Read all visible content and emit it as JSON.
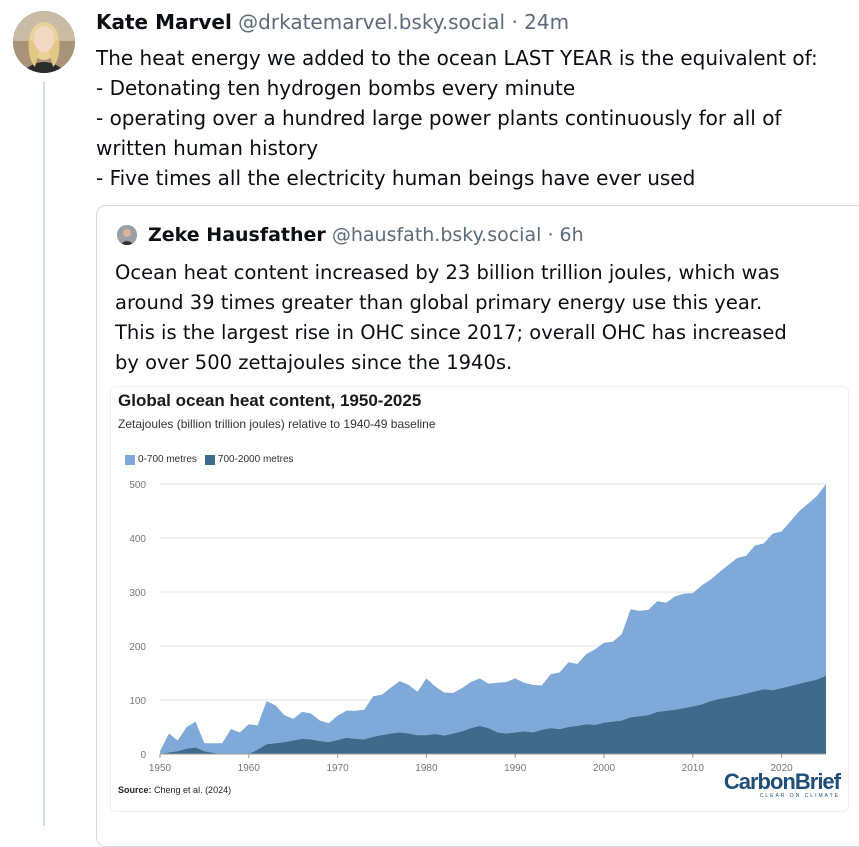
{
  "post": {
    "author_name": "Kate Marvel",
    "author_handle": "@drkatemarvel.bsky.social",
    "separator": "·",
    "time": "24m",
    "lines": [
      "The heat energy we added to the ocean LAST YEAR is the equivalent of:",
      "- Detonating ten hydrogen bombs every minute",
      "- operating over a hundred large power plants continuously for all of",
      "written human history",
      "- Five times all the electricity human beings have ever used"
    ]
  },
  "quote": {
    "author_name": "Zeke Hausfather",
    "author_handle": "@hausfath.bsky.social",
    "separator": "·",
    "time": "6h",
    "lines": [
      "Ocean heat content increased by 23 billion trillion joules, which was",
      "around 39 times greater than global primary energy use this year.",
      "This is the largest rise in OHC since 2017; overall OHC has increased",
      "by over 500 zettajoules since the 1940s."
    ]
  },
  "chart_data": {
    "type": "area",
    "title": "Global ocean heat content, 1950-2025",
    "subtitle": "Zetajoules (billion trillion joules) relative to 1940-49 baseline",
    "stacked": true,
    "x": [
      1950,
      1951,
      1952,
      1953,
      1954,
      1955,
      1956,
      1957,
      1958,
      1959,
      1960,
      1961,
      1962,
      1963,
      1964,
      1965,
      1966,
      1967,
      1968,
      1969,
      1970,
      1971,
      1972,
      1973,
      1974,
      1975,
      1976,
      1977,
      1978,
      1979,
      1980,
      1981,
      1982,
      1983,
      1984,
      1985,
      1986,
      1987,
      1988,
      1989,
      1990,
      1991,
      1992,
      1993,
      1994,
      1995,
      1996,
      1997,
      1998,
      1999,
      2000,
      2001,
      2002,
      2003,
      2004,
      2005,
      2006,
      2007,
      2008,
      2009,
      2010,
      2011,
      2012,
      2013,
      2014,
      2015,
      2016,
      2017,
      2018,
      2019,
      2020,
      2021,
      2022,
      2023,
      2024,
      2025
    ],
    "series": [
      {
        "name": "700-2000 metres",
        "values": [
          0,
          3,
          5,
          10,
          12,
          5,
          2,
          0,
          1,
          0,
          0,
          8,
          18,
          20,
          22,
          25,
          28,
          27,
          24,
          22,
          26,
          30,
          28,
          27,
          32,
          35,
          38,
          40,
          38,
          35,
          35,
          37,
          34,
          38,
          42,
          48,
          52,
          48,
          40,
          38,
          40,
          42,
          40,
          45,
          48,
          46,
          50,
          52,
          55,
          54,
          58,
          60,
          62,
          68,
          70,
          72,
          78,
          80,
          82,
          85,
          88,
          92,
          98,
          102,
          105,
          108,
          112,
          116,
          120,
          118,
          122,
          126,
          130,
          134,
          138,
          145
        ]
      },
      {
        "name": "0-700 metres",
        "values": [
          5,
          35,
          20,
          40,
          48,
          15,
          18,
          20,
          45,
          40,
          55,
          45,
          80,
          70,
          50,
          40,
          50,
          48,
          38,
          35,
          45,
          50,
          52,
          55,
          75,
          75,
          85,
          95,
          90,
          80,
          105,
          88,
          80,
          75,
          80,
          85,
          88,
          82,
          92,
          95,
          100,
          90,
          88,
          82,
          100,
          105,
          120,
          115,
          130,
          140,
          148,
          148,
          160,
          200,
          195,
          195,
          205,
          200,
          210,
          212,
          210,
          220,
          225,
          235,
          245,
          255,
          255,
          270,
          270,
          290,
          290,
          305,
          320,
          330,
          340,
          355
        ]
      }
    ],
    "xlim": [
      1950,
      2025
    ],
    "ylim": [
      0,
      500
    ],
    "xticks": [
      1950,
      1960,
      1970,
      1980,
      1990,
      2000,
      2010,
      2020
    ],
    "yticks": [
      0,
      100,
      200,
      300,
      400,
      500
    ],
    "grid": true,
    "legend_position": "top-left",
    "colors": {
      "0-700 metres": "#7fa9d8",
      "700-2000 metres": "#3f6a8a"
    },
    "source_label": "Source:",
    "source_text": "Cheng et al. (2024)"
  },
  "branding": {
    "name": "CarbonBrief",
    "tagline": "CLEAR ON CLIMATE"
  }
}
